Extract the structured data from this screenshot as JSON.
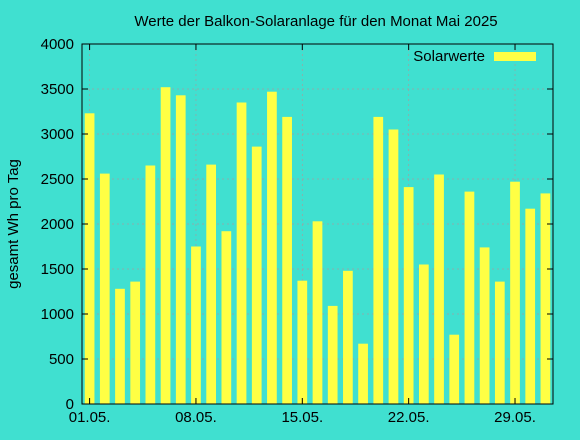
{
  "chart_data": {
    "type": "bar",
    "title": "Werte der Balkon-Solaranlage für den Monat Mai 2025",
    "xlabel": "",
    "ylabel": "gesamt Wh pro Tag",
    "ylim": [
      0,
      4000
    ],
    "xlim": [
      "2025-04-30T12:00",
      "2025-05-31T12:00"
    ],
    "yticks": [
      0,
      500,
      1000,
      1500,
      2000,
      2500,
      3000,
      3500,
      4000
    ],
    "xticks": [
      {
        "date": "2025-05-01",
        "label": "01.05."
      },
      {
        "date": "2025-05-08",
        "label": "08.05."
      },
      {
        "date": "2025-05-15",
        "label": "15.05."
      },
      {
        "date": "2025-05-22",
        "label": "22.05."
      },
      {
        "date": "2025-05-29",
        "label": "29.05."
      }
    ],
    "grid": true,
    "legend_position": "top-right",
    "series": [
      {
        "name": "Solarwerte",
        "color": "#ffff44",
        "x": [
          "2025-05-01",
          "2025-05-02",
          "2025-05-03",
          "2025-05-04",
          "2025-05-05",
          "2025-05-06",
          "2025-05-07",
          "2025-05-08",
          "2025-05-09",
          "2025-05-10",
          "2025-05-11",
          "2025-05-12",
          "2025-05-13",
          "2025-05-14",
          "2025-05-15",
          "2025-05-16",
          "2025-05-17",
          "2025-05-18",
          "2025-05-19",
          "2025-05-20",
          "2025-05-21",
          "2025-05-22",
          "2025-05-23",
          "2025-05-24",
          "2025-05-25",
          "2025-05-26",
          "2025-05-27",
          "2025-05-28",
          "2025-05-29",
          "2025-05-30",
          "2025-05-31"
        ],
        "values": [
          3230,
          2560,
          1280,
          1360,
          2650,
          3520,
          3430,
          1750,
          2660,
          1920,
          3350,
          2860,
          3470,
          3190,
          1370,
          2030,
          1090,
          1480,
          670,
          3190,
          3050,
          2410,
          1550,
          2550,
          770,
          2360,
          1740,
          1360,
          2470,
          2170,
          2340
        ]
      }
    ]
  },
  "colors": {
    "background": "#40e0d0",
    "bar": "#ffff44",
    "grid": "#a0a0a0",
    "axis": "#000000"
  }
}
